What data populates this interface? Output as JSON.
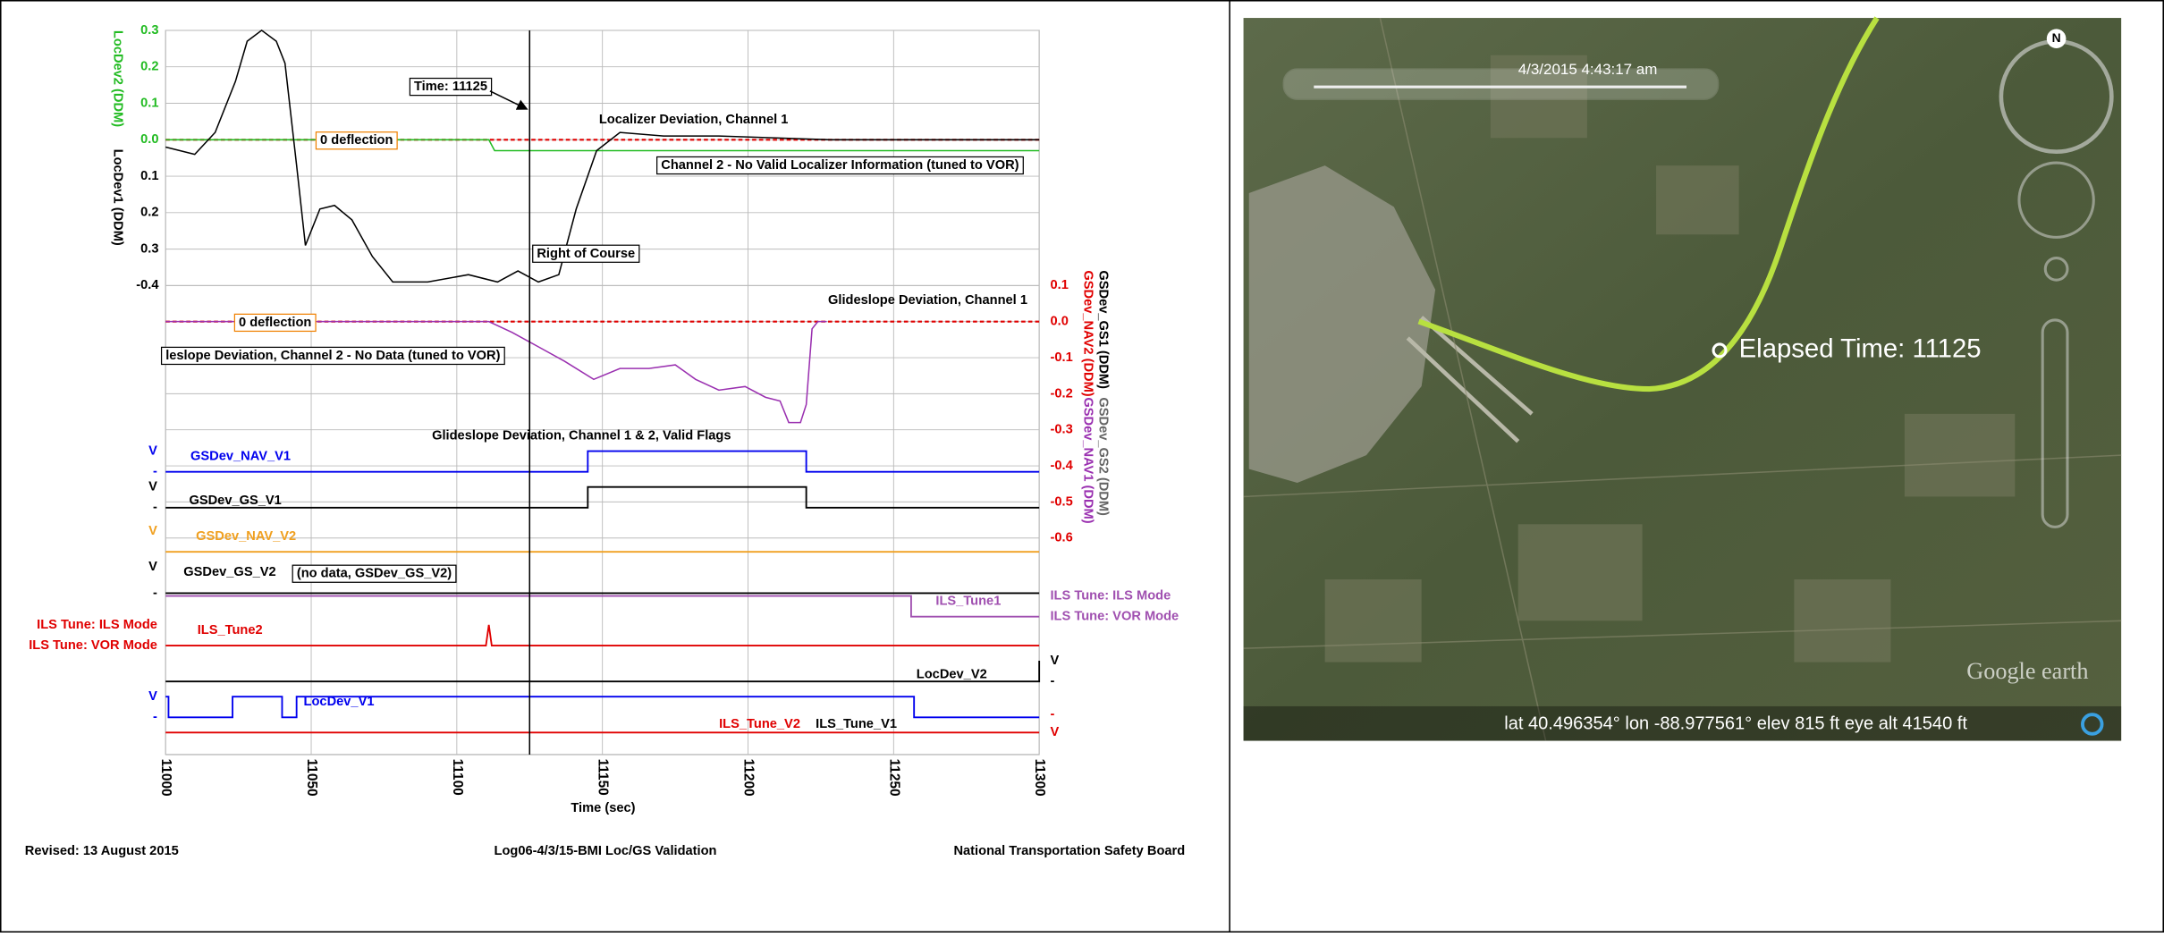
{
  "chart_data": {
    "type": "line",
    "xlabel": "Time (sec)",
    "xlim": [
      11000,
      11300
    ],
    "xticks": [
      11000,
      11050,
      11100,
      11150,
      11200,
      11250,
      11300
    ],
    "ylabel": [
      "LocDev2 (DDM)",
      "LocDev1 (DDM)"
    ],
    "ylim": [
      -0.4,
      0.3
    ],
    "yticks": [
      0.3,
      0.2,
      0.1,
      {
        "value": 0,
        "label": "0.0"
      },
      {
        "value": -0.1,
        "label": "0.1"
      },
      {
        "value": -0.2,
        "label": "0.2"
      },
      {
        "value": -0.3,
        "label": "0.3"
      },
      -0.4
    ],
    "y2label": [
      "GSDev_GS1 (DDM)",
      "GSDev_NAV2 (DDM)",
      "GSDev_NAV1 (DDM)",
      "GSDev_GS2 (DDM)"
    ],
    "y2lim": [
      -0.6,
      0.1
    ],
    "y2ticks": [
      0.1,
      {
        "value": 0,
        "label": "0.0"
      },
      -0.1,
      -0.2,
      -0.3,
      -0.4,
      -0.5,
      -0.6
    ],
    "grid": true,
    "series": [
      {
        "color": "#e00000",
        "dash": true,
        "x": [
          11000,
          11300
        ],
        "values": [
          0,
          0
        ]
      },
      {
        "color": "#22bb22",
        "x": [
          11000,
          11111,
          11113,
          11300
        ],
        "values": [
          0,
          0,
          -0.03,
          -0.03
        ]
      },
      {
        "color": "#000000",
        "x": [
          11000,
          11010,
          11017,
          11024,
          11028,
          11033,
          11038,
          11041,
          11045,
          11048,
          11053,
          11058,
          11064,
          11071,
          11078,
          11090,
          11104,
          11114,
          11121,
          11128,
          11135,
          11141,
          11148,
          11156,
          11171,
          11190,
          11228,
          11300
        ],
        "values": [
          -0.02,
          -0.04,
          0.02,
          0.16,
          0.27,
          0.3,
          0.27,
          0.21,
          -0.07,
          -0.29,
          -0.19,
          -0.18,
          -0.22,
          -0.32,
          -0.39,
          -0.39,
          -0.37,
          -0.39,
          -0.36,
          -0.39,
          -0.37,
          -0.19,
          -0.03,
          0.02,
          0.01,
          0.01,
          0,
          0
        ]
      },
      {
        "color": "#e00000",
        "dash": true,
        "axis": "y2",
        "x": [
          11000,
          11300
        ],
        "values": [
          0,
          0
        ]
      },
      {
        "color": "#9a30b0",
        "axis": "y2",
        "x": [
          11000,
          11111,
          11119,
          11128,
          11137,
          11147,
          11156,
          11166,
          11175,
          11182,
          11190,
          11199,
          11206,
          11211,
          11214,
          11218,
          11220,
          11222,
          11224,
          11227
        ],
        "values": [
          0,
          0,
          -0.03,
          -0.07,
          -0.11,
          -0.16,
          -0.13,
          -0.13,
          -0.12,
          -0.16,
          -0.19,
          -0.18,
          -0.21,
          -0.22,
          -0.28,
          -0.28,
          -0.23,
          -0.02,
          0,
          0
        ]
      }
    ],
    "flags": [
      {
        "name": "GSDev_NAV_V1",
        "color": "#0000ee",
        "x": [
          11000,
          11145,
          11145,
          11220,
          11220,
          11300
        ],
        "values": [
          0,
          0,
          1,
          1,
          0,
          0
        ],
        "ticks": [
          {
            "value": 1,
            "label": "V"
          },
          {
            "value": 0,
            "label": "-"
          }
        ]
      },
      {
        "name": "GSDev_GS_V1",
        "color": "#000000",
        "x": [
          11000,
          11145,
          11145,
          11220,
          11220,
          11300
        ],
        "values": [
          0,
          0,
          1,
          1,
          0,
          0
        ],
        "ticks": [
          {
            "value": 1,
            "label": "V"
          },
          {
            "value": 0,
            "label": "-"
          }
        ]
      },
      {
        "name": "GSDev_NAV_V2",
        "color": "#f0a020",
        "x": [
          11000,
          11300
        ],
        "values": [
          0,
          0
        ],
        "ticks": [
          {
            "value": 1,
            "label": "V"
          }
        ]
      },
      {
        "name": "GSDev_GS_V2",
        "color": "#000000",
        "x": [
          11000,
          11300
        ],
        "values": [
          0,
          0
        ],
        "ticks": [
          {
            "value": 1,
            "label": "V"
          },
          {
            "value": 0,
            "label": "-"
          }
        ]
      },
      {
        "name": "ILS_Tune1",
        "color": "#a050b0",
        "x": [
          11000,
          11256,
          11256,
          11300
        ],
        "values": [
          1,
          1,
          0,
          0
        ],
        "ticks": [
          {
            "value": 1,
            "label": "ILS Tune: ILS Mode"
          },
          {
            "value": 0,
            "label": "ILS Tune: VOR Mode"
          }
        ]
      },
      {
        "name": "ILS_Tune2",
        "color": "#e00000",
        "x": [
          11000,
          11110,
          11111,
          11112,
          11300
        ],
        "values": [
          0,
          0,
          1,
          0,
          0
        ],
        "ticks": [
          {
            "value": 1,
            "label": "ILS Tune: ILS Mode"
          },
          {
            "value": 0,
            "label": "ILS Tune: VOR Mode"
          }
        ]
      },
      {
        "name": "LocDev_V2",
        "color": "#000000",
        "x": [
          11000,
          11300,
          11300
        ],
        "values": [
          0,
          0,
          1
        ],
        "ticks": [
          {
            "value": 1,
            "label": "V"
          },
          {
            "value": 0,
            "label": "-"
          }
        ]
      },
      {
        "name": "LocDev_V1",
        "color": "#0000ee",
        "x": [
          11000,
          11001,
          11001,
          11023,
          11023,
          11040,
          11040,
          11045,
          11045,
          11257,
          11257,
          11300
        ],
        "values": [
          1,
          1,
          0,
          0,
          1,
          1,
          0,
          0,
          1,
          1,
          0,
          0
        ],
        "ticks": [
          {
            "value": 1,
            "label": "V"
          },
          {
            "value": 0,
            "label": "-"
          }
        ]
      },
      {
        "name": "ILS_Tune_V2",
        "color": "#e00000",
        "x": [
          11000,
          11300
        ],
        "values": [
          0,
          0
        ],
        "ticks": [
          {
            "value": 0,
            "label": "V"
          },
          {
            "value": 1,
            "label": "-"
          }
        ]
      }
    ],
    "cursor": 11125,
    "annotations": [
      "Time: 11125",
      "0 deflection",
      "Localizer Deviation, Channel 1",
      "Channel 2 - No Valid Localizer Information (tuned to VOR)",
      "Right of Course",
      "Glideslope Deviation, Channel 1",
      "0 deflection",
      "leslope Deviation, Channel 2 - No Data (tuned to VOR)",
      "Glideslope Deviation, Channel 1 & 2, Valid Flags",
      "(no data, GSDev_GS_V2)",
      "ILS_Tune_V1"
    ]
  },
  "footer": {
    "left": "Revised: 13 August 2015",
    "center": "Log06-4/3/15-BMI Loc/GS Validation",
    "right": "National Transportation Safety Board"
  },
  "map": {
    "timestamp": "4/3/2015   4:43:17 am",
    "marker_label": "Elapsed Time: 11125",
    "compass": "N",
    "logo": "Google earth",
    "status": "lat   40.496354°   lon  -88.977561°   elev   815 ft       eye alt  41540 ft"
  }
}
